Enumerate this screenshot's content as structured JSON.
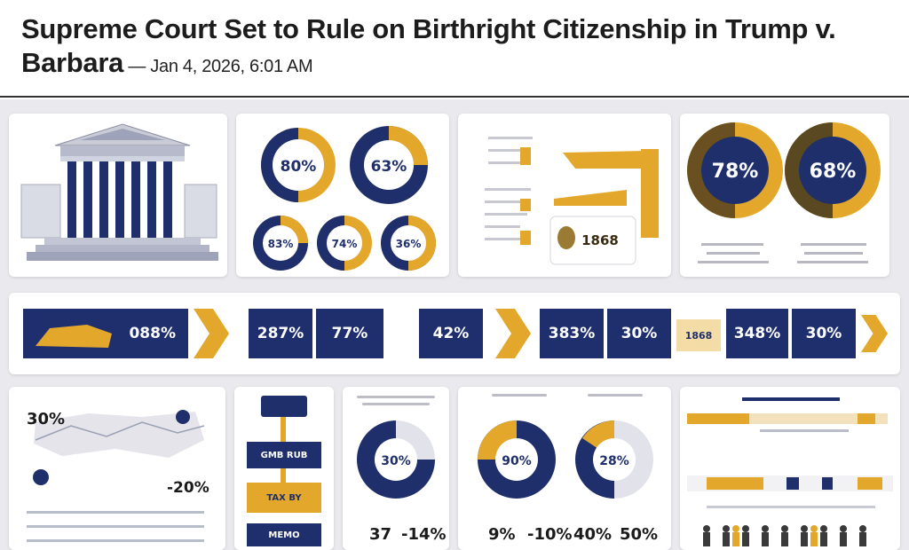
{
  "article": {
    "headline_line1": "Supreme Court Set to Rule on Birthright Citizenship in Trump v.",
    "headline_line2": "Barbara",
    "separator": " — ",
    "dateline": "Jan 4, 2026, 6:01 AM"
  },
  "infographic": {
    "donut_panel": {
      "large": [
        "80%",
        "63%"
      ],
      "small": [
        "83%",
        "74%",
        "36%"
      ]
    },
    "bar_panel": {
      "seal_text": "1868"
    },
    "big_donuts": [
      "78%",
      "68%"
    ],
    "timeline_strip": {
      "items": [
        "088%",
        "287%",
        "77%",
        "42%",
        "383%",
        "30%",
        "348%",
        "30%"
      ],
      "sub_label": "1868"
    },
    "map_panel": {
      "top_value": "30%",
      "bottom_value": "-20%"
    },
    "flow_panel": {
      "boxes": [
        "GMB RUB",
        "TAX BY",
        "MEMO"
      ]
    },
    "single_donut": {
      "value": "30%"
    },
    "pair_donuts": [
      "90%",
      "28%"
    ],
    "stats_row": [
      "37",
      "-14%",
      "9%",
      "-10%",
      "40%",
      "50%"
    ],
    "colors": {
      "navy": "#1e2f6b",
      "gold": "#e3a82b",
      "background": "#e9e9ee"
    }
  }
}
